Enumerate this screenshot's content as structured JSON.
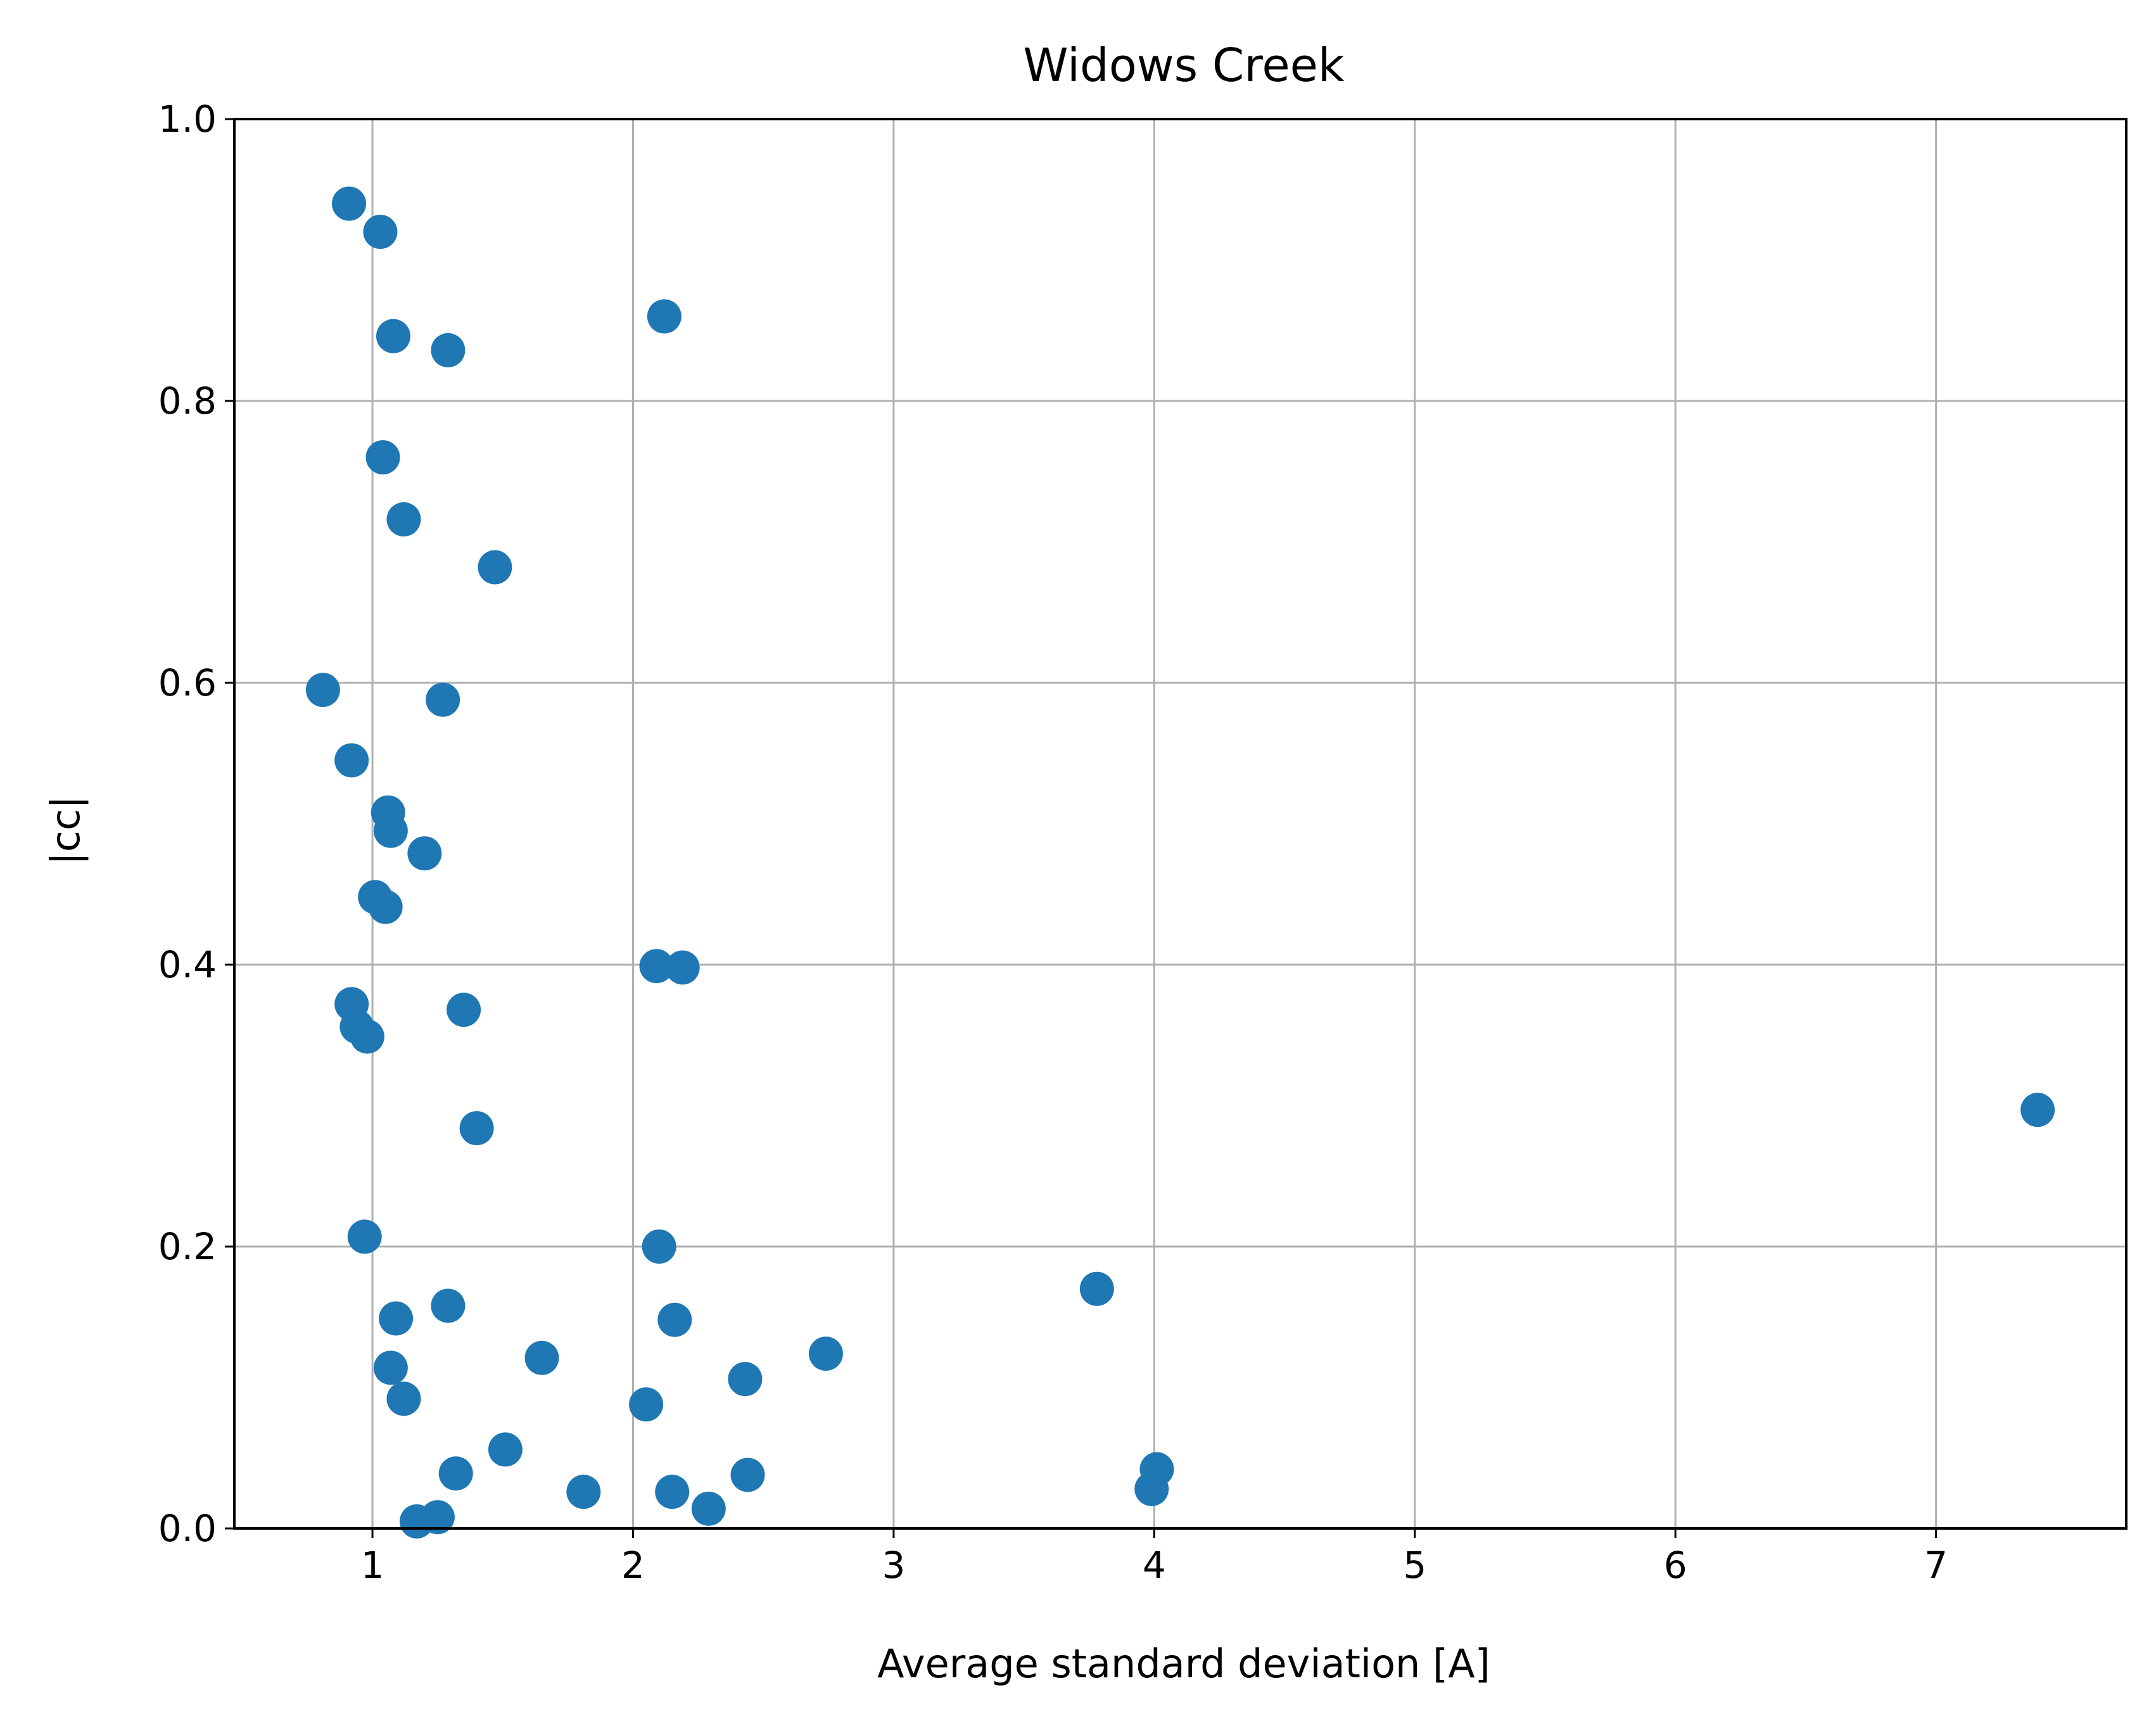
{
  "chart_data": {
    "type": "scatter",
    "title": "Widows Creek",
    "xlabel": "Average standard deviation [A]",
    "ylabel": "|cc|",
    "xlim": [
      0.47,
      7.73
    ],
    "ylim": [
      0.0,
      1.0
    ],
    "xticks": [
      1,
      2,
      3,
      4,
      5,
      6,
      7
    ],
    "xtick_labels": [
      "1",
      "2",
      "3",
      "4",
      "5",
      "6",
      "7"
    ],
    "yticks": [
      0.0,
      0.2,
      0.4,
      0.6,
      0.8,
      1.0
    ],
    "ytick_labels": [
      "0.0",
      "0.2",
      "0.4",
      "0.6",
      "0.8",
      "1.0"
    ],
    "grid": true,
    "color": "#1f77b4",
    "series": [
      {
        "x": [
          0.91,
          1.03,
          2.12,
          1.08,
          1.29,
          1.04,
          1.12,
          1.47,
          0.81,
          1.27,
          0.92,
          1.06,
          1.07,
          1.2,
          1.01,
          1.05,
          2.09,
          2.19,
          0.92,
          0.94,
          0.98,
          1.35,
          7.39,
          1.4,
          0.97,
          2.1,
          3.78,
          1.29,
          1.09,
          2.16,
          1.65,
          2.74,
          1.07,
          2.43,
          1.12,
          2.05,
          1.51,
          4.01,
          1.32,
          2.44,
          3.99,
          1.81,
          2.15,
          2.29,
          1.25,
          1.17
        ],
        "y": [
          0.94,
          0.92,
          0.86,
          0.846,
          0.836,
          0.76,
          0.716,
          0.682,
          0.595,
          0.588,
          0.545,
          0.508,
          0.495,
          0.479,
          0.448,
          0.441,
          0.399,
          0.398,
          0.372,
          0.356,
          0.349,
          0.368,
          0.297,
          0.284,
          0.207,
          0.2,
          0.17,
          0.158,
          0.149,
          0.148,
          0.121,
          0.124,
          0.114,
          0.106,
          0.092,
          0.088,
          0.056,
          0.042,
          0.039,
          0.038,
          0.028,
          0.026,
          0.026,
          0.014,
          0.008,
          0.005
        ]
      }
    ]
  }
}
